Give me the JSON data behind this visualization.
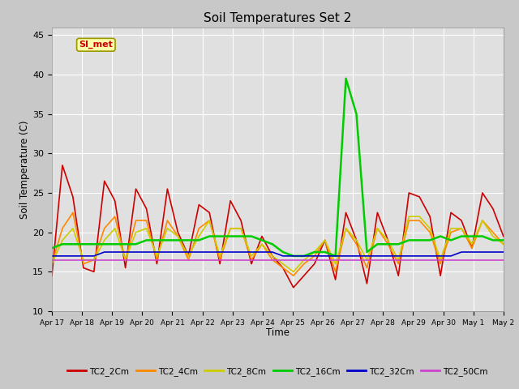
{
  "title": "Soil Temperatures Set 2",
  "xlabel": "Time",
  "ylabel": "Soil Temperature (C)",
  "ylim": [
    10,
    46
  ],
  "yticks": [
    10,
    15,
    20,
    25,
    30,
    35,
    40,
    45
  ],
  "annotation_text": "SI_met",
  "series_keys": [
    "TC2_2Cm",
    "TC2_4Cm",
    "TC2_8Cm",
    "TC2_16Cm",
    "TC2_32Cm",
    "TC2_50Cm"
  ],
  "series_colors": [
    "#cc0000",
    "#ff8800",
    "#cccc00",
    "#00cc00",
    "#0000cc",
    "#cc44cc"
  ],
  "series_lw": [
    1.2,
    1.2,
    1.2,
    1.8,
    1.2,
    1.2
  ],
  "x_labels": [
    "Apr 17",
    "Apr 18",
    "Apr 19",
    "Apr 20",
    "Apr 21",
    "Apr 22",
    "Apr 23",
    "Apr 24",
    "Apr 25",
    "Apr 26",
    "Apr 27",
    "Apr 28",
    "Apr 29",
    "Apr 30",
    "May 1",
    "May 2"
  ],
  "n_days": 16,
  "TC2_2Cm": [
    14.5,
    28.5,
    24.5,
    15.5,
    15.0,
    26.5,
    24.0,
    15.5,
    25.5,
    23.0,
    16.0,
    25.5,
    20.0,
    17.0,
    23.5,
    22.5,
    16.0,
    24.0,
    21.5,
    16.0,
    19.5,
    17.0,
    15.5,
    13.0,
    14.5,
    16.0,
    19.0,
    14.0,
    22.5,
    19.0,
    13.5,
    22.5,
    19.0,
    14.5,
    25.0,
    24.5,
    22.0,
    14.5,
    22.5,
    21.5,
    18.0,
    25.0,
    23.0,
    19.5
  ],
  "TC2_4Cm": [
    16.0,
    20.5,
    22.5,
    16.0,
    16.5,
    20.5,
    22.0,
    16.5,
    21.5,
    21.5,
    16.5,
    21.5,
    19.5,
    16.5,
    20.5,
    21.5,
    16.5,
    20.5,
    20.5,
    16.5,
    18.5,
    16.5,
    15.5,
    14.5,
    16.0,
    17.0,
    19.0,
    15.0,
    20.5,
    18.5,
    15.5,
    20.5,
    18.5,
    16.0,
    21.5,
    21.5,
    20.0,
    16.0,
    20.0,
    20.5,
    18.0,
    21.5,
    20.0,
    18.5
  ],
  "TC2_8Cm": [
    16.0,
    19.0,
    20.5,
    16.5,
    16.5,
    19.0,
    20.5,
    16.5,
    20.0,
    20.5,
    17.0,
    20.5,
    19.5,
    17.0,
    19.5,
    21.5,
    17.0,
    20.5,
    20.5,
    17.0,
    18.5,
    17.0,
    16.0,
    15.0,
    16.5,
    17.5,
    19.0,
    16.0,
    20.5,
    19.0,
    16.5,
    20.5,
    19.0,
    16.5,
    22.0,
    22.0,
    20.5,
    16.5,
    20.5,
    20.5,
    18.5,
    21.5,
    19.5,
    18.5
  ],
  "TC2_16Cm": [
    18.0,
    18.5,
    18.5,
    18.5,
    18.5,
    18.5,
    18.5,
    18.5,
    18.5,
    19.0,
    19.0,
    19.0,
    19.0,
    19.0,
    19.0,
    19.5,
    19.5,
    19.5,
    19.5,
    19.5,
    19.0,
    18.5,
    17.5,
    17.0,
    17.0,
    17.5,
    17.5,
    17.0,
    39.5,
    35.0,
    17.5,
    18.5,
    18.5,
    18.5,
    19.0,
    19.0,
    19.0,
    19.5,
    19.0,
    19.5,
    19.5,
    19.5,
    19.0,
    19.0
  ],
  "TC2_32Cm": [
    17.0,
    17.0,
    17.0,
    17.0,
    17.0,
    17.5,
    17.5,
    17.5,
    17.5,
    17.5,
    17.5,
    17.5,
    17.5,
    17.5,
    17.5,
    17.5,
    17.5,
    17.5,
    17.5,
    17.5,
    17.5,
    17.5,
    17.0,
    17.0,
    17.0,
    17.0,
    17.0,
    17.0,
    17.0,
    17.0,
    17.0,
    17.0,
    17.0,
    17.0,
    17.0,
    17.0,
    17.0,
    17.0,
    17.0,
    17.5,
    17.5,
    17.5,
    17.5,
    17.5
  ],
  "TC2_50Cm": [
    16.5,
    16.5,
    16.5,
    16.5,
    16.5,
    16.5,
    16.5,
    16.5,
    16.5,
    16.5,
    16.5,
    16.5,
    16.5,
    16.5,
    16.5,
    16.5,
    16.5,
    16.5,
    16.5,
    16.5,
    16.5,
    16.5,
    16.5,
    16.5,
    16.5,
    16.5,
    16.5,
    16.5,
    16.5,
    16.5,
    16.5,
    16.5,
    16.5,
    16.5,
    16.5,
    16.5,
    16.5,
    16.5,
    16.5,
    16.5,
    16.5,
    16.5,
    16.5,
    16.5
  ]
}
